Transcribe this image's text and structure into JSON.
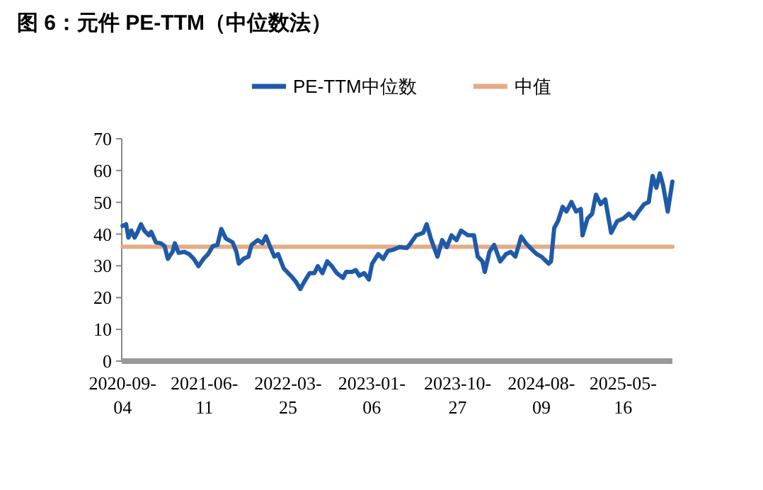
{
  "chart_data": {
    "type": "line",
    "title": "图 6：元件 PE-TTM（中位数法）",
    "x": [
      "2020-09-04",
      "2020-09-16",
      "2020-09-24",
      "2020-10-04",
      "2020-10-15",
      "2020-10-24",
      "2020-11-06",
      "2020-11-17",
      "2020-12-03",
      "2020-12-11",
      "2020-12-27",
      "2021-01-13",
      "2021-01-26",
      "2021-02-06",
      "2021-02-22",
      "2021-03-02",
      "2021-03-15",
      "2021-04-04",
      "2021-04-20",
      "2021-05-06",
      "2021-05-22",
      "2021-06-08",
      "2021-06-24",
      "2021-07-10",
      "2021-07-26",
      "2021-08-08",
      "2021-08-24",
      "2021-09-16",
      "2021-09-29",
      "2021-10-07",
      "2021-10-23",
      "2021-11-09",
      "2021-11-20",
      "2021-12-11",
      "2021-12-27",
      "2022-01-08",
      "2022-01-20",
      "2022-02-06",
      "2022-02-19",
      "2022-03-10",
      "2022-04-03",
      "2022-04-20",
      "2022-05-06",
      "2022-05-22",
      "2022-06-07",
      "2022-06-23",
      "2022-07-05",
      "2022-07-21",
      "2022-08-06",
      "2022-08-22",
      "2022-09-08",
      "2022-09-29",
      "2022-10-10",
      "2022-10-31",
      "2022-11-12",
      "2022-11-24",
      "2022-12-11",
      "2022-12-27",
      "2023-01-07",
      "2023-01-28",
      "2023-02-14",
      "2023-03-02",
      "2023-03-21",
      "2023-04-11",
      "2023-05-06",
      "2023-05-19",
      "2023-06-07",
      "2023-07-01",
      "2023-07-13",
      "2023-07-29",
      "2023-08-19",
      "2023-09-04",
      "2023-09-20",
      "2023-10-06",
      "2023-10-23",
      "2023-11-08",
      "2023-12-02",
      "2023-12-22",
      "2024-01-04",
      "2024-01-20",
      "2024-01-28",
      "2024-02-13",
      "2024-02-29",
      "2024-03-21",
      "2024-04-10",
      "2024-04-26",
      "2024-05-12",
      "2024-06-01",
      "2024-06-17",
      "2024-07-08",
      "2024-07-24",
      "2024-08-09",
      "2024-09-03",
      "2024-09-11",
      "2024-09-22",
      "2024-10-05",
      "2024-10-21",
      "2024-11-03",
      "2024-11-20",
      "2024-12-06",
      "2024-12-22",
      "2024-12-28",
      "2025-01-14",
      "2025-01-30",
      "2025-02-12",
      "2025-02-28",
      "2025-03-16",
      "2025-04-05",
      "2025-04-26",
      "2025-05-17",
      "2025-06-05",
      "2025-06-22",
      "2025-07-08",
      "2025-07-27",
      "2025-08-12",
      "2025-08-25",
      "2025-09-07",
      "2025-09-19",
      "2025-09-30",
      "2025-10-16",
      "2025-11-01"
    ],
    "series": [
      {
        "name": "PE-TTM中位数",
        "color": "#1f5aa8",
        "values": [
          42.6,
          43.1,
          38.9,
          41.1,
          38.9,
          40.4,
          43.1,
          41.1,
          39.6,
          40.7,
          37.4,
          37.1,
          36.2,
          32.2,
          34.4,
          37.1,
          34.1,
          34.4,
          33.7,
          32.2,
          29.9,
          32.2,
          33.7,
          36.2,
          36.6,
          41.6,
          38.6,
          37.4,
          34.4,
          30.7,
          32.2,
          32.9,
          36.6,
          38.1,
          37.1,
          39.3,
          36.6,
          32.9,
          33.7,
          29.2,
          26.9,
          25.1,
          22.7,
          25.4,
          27.7,
          27.7,
          29.9,
          27.7,
          31.4,
          29.9,
          27.7,
          26.2,
          28.1,
          28.1,
          28.7,
          26.9,
          27.7,
          25.7,
          30.7,
          33.7,
          32.2,
          34.7,
          35.1,
          35.9,
          35.6,
          37.1,
          39.6,
          40.4,
          43.1,
          38.1,
          32.9,
          38.1,
          35.9,
          39.6,
          38.1,
          41.1,
          39.6,
          39.6,
          32.9,
          31.4,
          28.1,
          34.4,
          36.6,
          31.4,
          33.7,
          34.4,
          32.9,
          39.2,
          37.1,
          35.1,
          33.7,
          32.9,
          30.7,
          31.4,
          41.9,
          44.1,
          48.6,
          47.1,
          50.1,
          47.1,
          47.9,
          39.6,
          44.9,
          46.4,
          52.4,
          49.4,
          50.9,
          40.4,
          44.1,
          44.9,
          46.4,
          44.9,
          47.1,
          49.4,
          50.1,
          58.3,
          54.6,
          59.1,
          55.4,
          47.1,
          56.5
        ]
      },
      {
        "name": "中值",
        "color": "#e3ac85",
        "x": [
          "2020-09-04",
          "2025-11-01"
        ],
        "values": [
          36,
          36
        ]
      }
    ],
    "xlim": [
      "2020-09-01",
      "2025-11-01"
    ],
    "xticks": [
      "2020-09-04",
      "2021-06-11",
      "2022-03-25",
      "2023-01-06",
      "2023-10-27",
      "2024-08-09",
      "2025-05-16"
    ],
    "ylim": [
      0,
      70
    ],
    "yticks": [
      0,
      10,
      20,
      30,
      40,
      50,
      60,
      70
    ],
    "grid": false,
    "legend": "top",
    "marker": "none",
    "line_style": "solid"
  }
}
